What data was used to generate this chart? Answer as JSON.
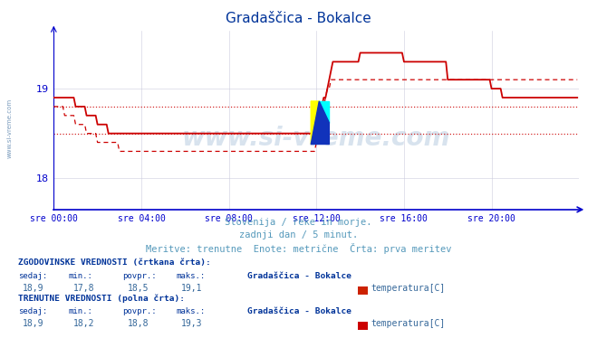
{
  "title": "Gradaščica - Bokalce",
  "title_color": "#003399",
  "bg_color": "#ffffff",
  "plot_bg_color": "#ffffff",
  "grid_color": "#ccccdd",
  "axis_color": "#0000cc",
  "xlabel_ticks": [
    "sre 00:00",
    "sre 04:00",
    "sre 08:00",
    "sre 12:00",
    "sre 16:00",
    "sre 20:00"
  ],
  "xlabel_tick_positions": [
    0,
    48,
    96,
    144,
    192,
    240
  ],
  "ylabel_ticks": [
    18,
    19
  ],
  "ylim": [
    17.65,
    19.65
  ],
  "xlim": [
    0,
    288
  ],
  "line_color": "#cc0000",
  "watermark": "www.si-vreme.com",
  "subtitle1": "Slovenija / reke in morje.",
  "subtitle2": "zadnji dan / 5 minut.",
  "subtitle3": "Meritve: trenutne  Enote: metrične  Črta: prva meritev",
  "subtitle_color": "#5599bb",
  "table_header_color": "#003399",
  "table_value_color": "#336699",
  "avg_hist": 18.5,
  "avg_curr": 18.8,
  "solid_y_data": [
    18.9,
    18.9,
    18.9,
    18.9,
    18.9,
    18.9,
    18.9,
    18.9,
    18.9,
    18.9,
    18.9,
    18.9,
    18.8,
    18.8,
    18.8,
    18.8,
    18.8,
    18.8,
    18.7,
    18.7,
    18.7,
    18.7,
    18.7,
    18.7,
    18.6,
    18.6,
    18.6,
    18.6,
    18.6,
    18.6,
    18.5,
    18.5,
    18.5,
    18.5,
    18.5,
    18.5,
    18.5,
    18.5,
    18.5,
    18.5,
    18.5,
    18.5,
    18.5,
    18.5,
    18.5,
    18.5,
    18.5,
    18.5,
    18.5,
    18.5,
    18.5,
    18.5,
    18.5,
    18.5,
    18.5,
    18.5,
    18.5,
    18.5,
    18.5,
    18.5,
    18.5,
    18.5,
    18.5,
    18.5,
    18.5,
    18.5,
    18.5,
    18.5,
    18.5,
    18.5,
    18.5,
    18.5,
    18.5,
    18.5,
    18.5,
    18.5,
    18.5,
    18.5,
    18.5,
    18.5,
    18.5,
    18.5,
    18.5,
    18.5,
    18.5,
    18.5,
    18.5,
    18.5,
    18.5,
    18.5,
    18.5,
    18.5,
    18.5,
    18.5,
    18.5,
    18.5,
    18.5,
    18.5,
    18.5,
    18.5,
    18.5,
    18.5,
    18.5,
    18.5,
    18.5,
    18.5,
    18.5,
    18.5,
    18.5,
    18.5,
    18.5,
    18.5,
    18.5,
    18.5,
    18.5,
    18.5,
    18.5,
    18.5,
    18.5,
    18.5,
    18.5,
    18.5,
    18.5,
    18.5,
    18.5,
    18.5,
    18.5,
    18.5,
    18.5,
    18.5,
    18.5,
    18.5,
    18.5,
    18.5,
    18.5,
    18.5,
    18.5,
    18.5,
    18.5,
    18.5,
    18.5,
    18.5,
    18.5,
    18.5,
    18.6,
    18.6,
    18.7,
    18.8,
    18.9,
    18.9,
    19.0,
    19.1,
    19.2,
    19.3,
    19.3,
    19.3,
    19.3,
    19.3,
    19.3,
    19.3,
    19.3,
    19.3,
    19.3,
    19.3,
    19.3,
    19.3,
    19.3,
    19.3,
    19.4,
    19.4,
    19.4,
    19.4,
    19.4,
    19.4,
    19.4,
    19.4,
    19.4,
    19.4,
    19.4,
    19.4,
    19.4,
    19.4,
    19.4,
    19.4,
    19.4,
    19.4,
    19.4,
    19.4,
    19.4,
    19.4,
    19.4,
    19.4,
    19.3,
    19.3,
    19.3,
    19.3,
    19.3,
    19.3,
    19.3,
    19.3,
    19.3,
    19.3,
    19.3,
    19.3,
    19.3,
    19.3,
    19.3,
    19.3,
    19.3,
    19.3,
    19.3,
    19.3,
    19.3,
    19.3,
    19.3,
    19.3,
    19.1,
    19.1,
    19.1,
    19.1,
    19.1,
    19.1,
    19.1,
    19.1,
    19.1,
    19.1,
    19.1,
    19.1,
    19.1,
    19.1,
    19.1,
    19.1,
    19.1,
    19.1,
    19.1,
    19.1,
    19.1,
    19.1,
    19.1,
    19.1,
    19.0,
    19.0,
    19.0,
    19.0,
    19.0,
    19.0,
    18.9,
    18.9,
    18.9,
    18.9,
    18.9,
    18.9,
    18.9,
    18.9,
    18.9,
    18.9,
    18.9,
    18.9,
    18.9,
    18.9,
    18.9,
    18.9,
    18.9,
    18.9,
    18.9,
    18.9,
    18.9,
    18.9,
    18.9,
    18.9,
    18.9,
    18.9,
    18.9,
    18.9,
    18.9,
    18.9,
    18.9,
    18.9,
    18.9,
    18.9,
    18.9,
    18.9,
    18.9,
    18.9,
    18.9,
    18.9,
    18.9,
    18.9
  ],
  "dashed_y_data": [
    18.8,
    18.8,
    18.8,
    18.8,
    18.8,
    18.8,
    18.7,
    18.7,
    18.7,
    18.7,
    18.7,
    18.7,
    18.6,
    18.6,
    18.6,
    18.6,
    18.6,
    18.6,
    18.5,
    18.5,
    18.5,
    18.5,
    18.5,
    18.5,
    18.4,
    18.4,
    18.4,
    18.4,
    18.4,
    18.4,
    18.4,
    18.4,
    18.4,
    18.4,
    18.4,
    18.4,
    18.3,
    18.3,
    18.3,
    18.3,
    18.3,
    18.3,
    18.3,
    18.3,
    18.3,
    18.3,
    18.3,
    18.3,
    18.3,
    18.3,
    18.3,
    18.3,
    18.3,
    18.3,
    18.3,
    18.3,
    18.3,
    18.3,
    18.3,
    18.3,
    18.3,
    18.3,
    18.3,
    18.3,
    18.3,
    18.3,
    18.3,
    18.3,
    18.3,
    18.3,
    18.3,
    18.3,
    18.3,
    18.3,
    18.3,
    18.3,
    18.3,
    18.3,
    18.3,
    18.3,
    18.3,
    18.3,
    18.3,
    18.3,
    18.3,
    18.3,
    18.3,
    18.3,
    18.3,
    18.3,
    18.3,
    18.3,
    18.3,
    18.3,
    18.3,
    18.3,
    18.3,
    18.3,
    18.3,
    18.3,
    18.3,
    18.3,
    18.3,
    18.3,
    18.3,
    18.3,
    18.3,
    18.3,
    18.3,
    18.3,
    18.3,
    18.3,
    18.3,
    18.3,
    18.3,
    18.3,
    18.3,
    18.3,
    18.3,
    18.3,
    18.3,
    18.3,
    18.3,
    18.3,
    18.3,
    18.3,
    18.3,
    18.3,
    18.3,
    18.3,
    18.3,
    18.3,
    18.3,
    18.3,
    18.3,
    18.3,
    18.3,
    18.3,
    18.3,
    18.3,
    18.3,
    18.3,
    18.3,
    18.3,
    18.4,
    18.5,
    18.6,
    18.7,
    18.8,
    18.9,
    19.0,
    19.0,
    19.1,
    19.1,
    19.1,
    19.1,
    19.1,
    19.1,
    19.1,
    19.1,
    19.1,
    19.1,
    19.1,
    19.1,
    19.1,
    19.1,
    19.1,
    19.1,
    19.1,
    19.1,
    19.1,
    19.1,
    19.1,
    19.1,
    19.1,
    19.1,
    19.1,
    19.1,
    19.1,
    19.1,
    19.1,
    19.1,
    19.1,
    19.1,
    19.1,
    19.1,
    19.1,
    19.1,
    19.1,
    19.1,
    19.1,
    19.1,
    19.1,
    19.1,
    19.1,
    19.1,
    19.1,
    19.1,
    19.1,
    19.1,
    19.1,
    19.1,
    19.1,
    19.1,
    19.1,
    19.1,
    19.1,
    19.1,
    19.1,
    19.1,
    19.1,
    19.1,
    19.1,
    19.1,
    19.1,
    19.1,
    19.1,
    19.1,
    19.1,
    19.1,
    19.1,
    19.1,
    19.1,
    19.1,
    19.1,
    19.1,
    19.1,
    19.1,
    19.1,
    19.1,
    19.1,
    19.1,
    19.1,
    19.1,
    19.1,
    19.1,
    19.1,
    19.1,
    19.1,
    19.1,
    19.1,
    19.1,
    19.1,
    19.1,
    19.1,
    19.1,
    19.1,
    19.1,
    19.1,
    19.1,
    19.1,
    19.1,
    19.1,
    19.1,
    19.1,
    19.1,
    19.1,
    19.1,
    19.1,
    19.1,
    19.1,
    19.1,
    19.1,
    19.1,
    19.1,
    19.1,
    19.1,
    19.1,
    19.1,
    19.1,
    19.1,
    19.1,
    19.1,
    19.1,
    19.1,
    19.1,
    19.1,
    19.1,
    19.1,
    19.1,
    19.1,
    19.1,
    19.1,
    19.1,
    19.1,
    19.1,
    19.1,
    19.1
  ],
  "n_points": 288,
  "xmin": 0,
  "xmax": 288
}
